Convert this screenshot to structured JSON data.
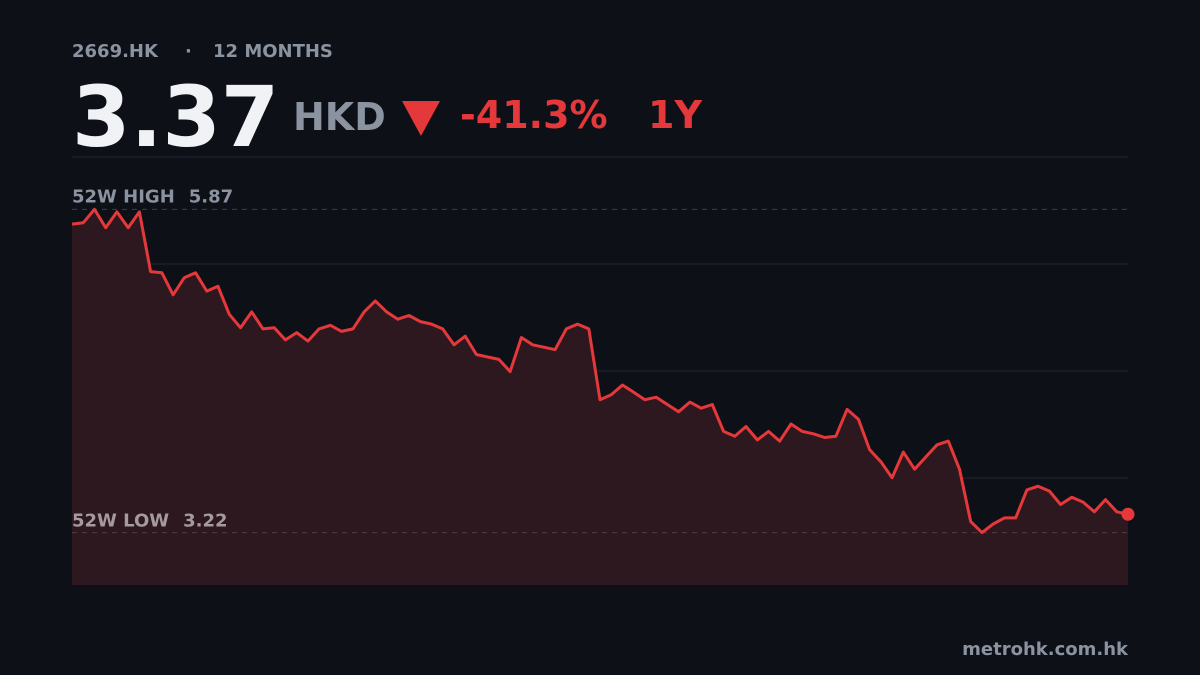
{
  "header": {
    "ticker": "2669.HK",
    "period": "12 MONTHS",
    "price": 3.37,
    "currency": "HKD",
    "change": {
      "value": -41.3,
      "label": "-41.3%"
    },
    "range": "1Y"
  },
  "chart_data": {
    "type": "line",
    "color": "#e5383b",
    "ylim": [
      2.79,
      6.3
    ],
    "high": {
      "label": "52W HIGH",
      "value": 5.87
    },
    "low": {
      "label": "52W LOW",
      "value": 3.22
    },
    "values": [
      5.75,
      5.76,
      5.87,
      5.72,
      5.85,
      5.72,
      5.85,
      5.36,
      5.35,
      5.17,
      5.31,
      5.35,
      5.2,
      5.24,
      5.01,
      4.9,
      5.03,
      4.89,
      4.9,
      4.8,
      4.86,
      4.79,
      4.89,
      4.92,
      4.87,
      4.89,
      5.03,
      5.12,
      5.03,
      4.97,
      5.0,
      4.95,
      4.93,
      4.89,
      4.76,
      4.83,
      4.68,
      4.66,
      4.64,
      4.54,
      4.82,
      4.76,
      4.74,
      4.72,
      4.89,
      4.93,
      4.89,
      4.31,
      4.35,
      4.43,
      4.37,
      4.31,
      4.33,
      4.27,
      4.21,
      4.29,
      4.24,
      4.27,
      4.05,
      4.01,
      4.09,
      3.98,
      4.05,
      3.97,
      4.11,
      4.05,
      4.03,
      4.0,
      4.01,
      4.23,
      4.15,
      3.9,
      3.8,
      3.67,
      3.88,
      3.74,
      3.84,
      3.94,
      3.97,
      3.74,
      3.31,
      3.22,
      3.29,
      3.34,
      3.34,
      3.57,
      3.6,
      3.56,
      3.45,
      3.51,
      3.47,
      3.39,
      3.49,
      3.39,
      3.37
    ]
  },
  "footer": {
    "source": "metrohk.com.hk"
  }
}
